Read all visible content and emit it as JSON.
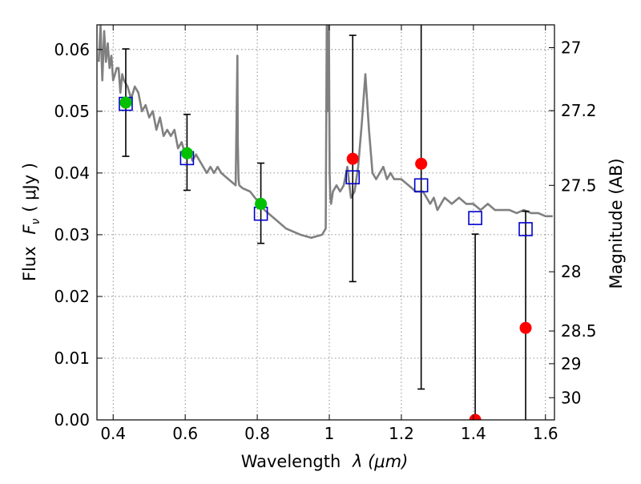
{
  "chart_data": {
    "type": "scatter",
    "title": "",
    "xlabel_text": "Wavelength",
    "xlabel_sym": "λ (μm)",
    "ylabel_text": "Flux",
    "ylabel_sym": "F",
    "ylabel_sub": "ν",
    "ylabel_unit": "( μJy )",
    "y2label": "Magnitude (AB)",
    "xlim": [
      0.355,
      1.625
    ],
    "ylim": [
      0.0,
      0.064
    ],
    "grid": true,
    "x_ticks": [
      0.4,
      0.6,
      0.8,
      1.0,
      1.2,
      1.4,
      1.6
    ],
    "x_tick_labels": [
      "0.4",
      "0.6",
      "0.8",
      "1",
      "1.2",
      "1.4",
      "1.6"
    ],
    "y_ticks": [
      0.0,
      0.01,
      0.02,
      0.03,
      0.04,
      0.05,
      0.06
    ],
    "y_tick_labels": [
      "0.00",
      "0.01",
      "0.02",
      "0.03",
      "0.04",
      "0.05",
      "0.06"
    ],
    "y2_ticks": [
      {
        "label": "27",
        "flux": 0.0603
      },
      {
        "label": "27.2",
        "flux": 0.0501
      },
      {
        "label": "27.5",
        "flux": 0.038
      },
      {
        "label": "28",
        "flux": 0.024
      },
      {
        "label": "28.5",
        "flux": 0.0144
      },
      {
        "label": "29",
        "flux": 0.0091
      },
      {
        "label": "30",
        "flux": 0.0036
      }
    ],
    "colors": {
      "spectrum": "#808080",
      "green": "#00c000",
      "red": "#ff0000",
      "box": "#0000cc",
      "errorbar": "#000000"
    },
    "series": [
      {
        "kind": "spectrum",
        "x": [
          0.36,
          0.365,
          0.37,
          0.375,
          0.38,
          0.385,
          0.39,
          0.395,
          0.4,
          0.405,
          0.41,
          0.415,
          0.42,
          0.425,
          0.43,
          0.44,
          0.45,
          0.46,
          0.47,
          0.48,
          0.49,
          0.5,
          0.51,
          0.52,
          0.53,
          0.54,
          0.55,
          0.56,
          0.57,
          0.58,
          0.59,
          0.6,
          0.61,
          0.62,
          0.63,
          0.64,
          0.65,
          0.66,
          0.67,
          0.68,
          0.69,
          0.7,
          0.72,
          0.74,
          0.745,
          0.746,
          0.748,
          0.75,
          0.76,
          0.78,
          0.8,
          0.82,
          0.85,
          0.88,
          0.9,
          0.92,
          0.95,
          0.98,
          0.99,
          0.993,
          0.995,
          0.997,
          0.999,
          1.001,
          1.003,
          1.005,
          1.01,
          1.02,
          1.03,
          1.04,
          1.05,
          1.06,
          1.07,
          1.08,
          1.09,
          1.1,
          1.11,
          1.12,
          1.13,
          1.14,
          1.15,
          1.16,
          1.17,
          1.18,
          1.19,
          1.2,
          1.22,
          1.24,
          1.26,
          1.27,
          1.28,
          1.29,
          1.3,
          1.32,
          1.34,
          1.36,
          1.38,
          1.4,
          1.42,
          1.44,
          1.46,
          1.48,
          1.5,
          1.52,
          1.54,
          1.56,
          1.58,
          1.6,
          1.62
        ],
        "y": [
          0.058,
          0.064,
          0.055,
          0.063,
          0.058,
          0.061,
          0.057,
          0.059,
          0.055,
          0.056,
          0.057,
          0.057,
          0.053,
          0.056,
          0.055,
          0.054,
          0.052,
          0.054,
          0.053,
          0.05,
          0.051,
          0.049,
          0.05,
          0.047,
          0.049,
          0.046,
          0.047,
          0.046,
          0.047,
          0.044,
          0.045,
          0.043,
          0.044,
          0.042,
          0.043,
          0.042,
          0.041,
          0.04,
          0.041,
          0.04,
          0.041,
          0.04,
          0.039,
          0.038,
          0.059,
          0.045,
          0.039,
          0.038,
          0.0375,
          0.037,
          0.0355,
          0.034,
          0.0325,
          0.031,
          0.0305,
          0.03,
          0.0295,
          0.03,
          0.031,
          0.064,
          0.05,
          0.064,
          0.064,
          0.04,
          0.036,
          0.035,
          0.037,
          0.038,
          0.037,
          0.038,
          0.041,
          0.036,
          0.037,
          0.041,
          0.048,
          0.056,
          0.047,
          0.04,
          0.039,
          0.04,
          0.041,
          0.039,
          0.04,
          0.039,
          0.039,
          0.039,
          0.038,
          0.037,
          0.037,
          0.036,
          0.035,
          0.036,
          0.034,
          0.036,
          0.035,
          0.036,
          0.035,
          0.035,
          0.034,
          0.035,
          0.034,
          0.034,
          0.034,
          0.0335,
          0.034,
          0.0335,
          0.0335,
          0.033,
          0.033
        ]
      },
      {
        "kind": "green-points",
        "x": [
          0.435,
          0.605,
          0.81
        ],
        "y": [
          0.0514,
          0.0432,
          0.035
        ]
      },
      {
        "kind": "red-points",
        "x": [
          1.065,
          1.255,
          1.405,
          1.545
        ],
        "y": [
          0.0423,
          0.0415,
          0.0,
          0.0149
        ]
      },
      {
        "kind": "model-boxes",
        "x": [
          0.435,
          0.605,
          0.81,
          1.065,
          1.255,
          1.405,
          1.545
        ],
        "y": [
          0.0512,
          0.0424,
          0.0334,
          0.0393,
          0.038,
          0.0327,
          0.0309
        ]
      },
      {
        "kind": "error-bars",
        "x": [
          0.435,
          0.605,
          0.81,
          1.065,
          1.255,
          1.405,
          1.545
        ],
        "low": [
          0.0427,
          0.0372,
          0.0286,
          0.0224,
          0.005,
          0.0,
          0.0
        ],
        "high": [
          0.0601,
          0.0495,
          0.0416,
          0.0623,
          0.064,
          0.0301,
          0.0338
        ]
      }
    ]
  }
}
